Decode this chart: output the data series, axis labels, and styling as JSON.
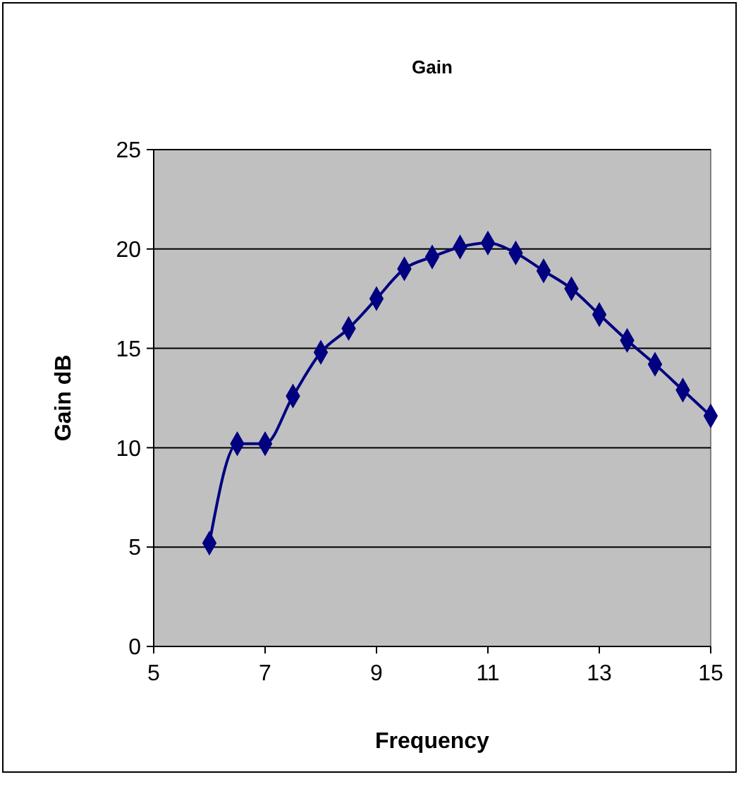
{
  "chart_data": {
    "type": "line",
    "title": "Gain",
    "xlabel": "Frequency",
    "ylabel": "Gain dB",
    "x": [
      6,
      6.5,
      7,
      7.5,
      8,
      8.5,
      9,
      9.5,
      10,
      10.5,
      11,
      11.5,
      12,
      12.5,
      13,
      13.5,
      14,
      14.5,
      15
    ],
    "series": [
      {
        "color": "#000080",
        "values": [
          5.2,
          10.2,
          10.2,
          12.6,
          14.8,
          16.0,
          17.5,
          19.0,
          19.6,
          20.1,
          20.3,
          19.8,
          18.9,
          18.0,
          16.7,
          15.4,
          14.2,
          12.9,
          11.6
        ]
      }
    ],
    "xlim": [
      5,
      15
    ],
    "xticks": [
      5,
      7,
      9,
      11,
      13,
      15
    ],
    "ylim": [
      0,
      25
    ],
    "yticks": [
      0,
      5,
      10,
      15,
      20,
      25
    ],
    "grid": "y",
    "marker": "diamond",
    "line_style": "solid"
  }
}
